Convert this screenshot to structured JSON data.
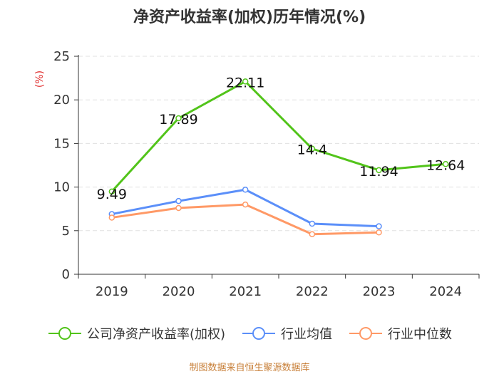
{
  "chart_data": {
    "type": "line",
    "title": "净资产收益率(加权)历年情况(%)",
    "ylabel": "(%)",
    "xlabel": "",
    "categories": [
      "2019",
      "2020",
      "2021",
      "2022",
      "2023",
      "2024"
    ],
    "ylim": [
      0,
      25
    ],
    "yticks": [
      0,
      5,
      10,
      15,
      20,
      25
    ],
    "grid": true,
    "legend_position": "bottom",
    "series": [
      {
        "name": "公司净资产收益率(加权)",
        "color": "#52c41a",
        "values": [
          9.49,
          17.89,
          22.11,
          14.4,
          11.94,
          12.64
        ],
        "labels": [
          "9.49",
          "17.89",
          "22.11",
          "14.4",
          "11.94",
          "12.64"
        ]
      },
      {
        "name": "行业均值",
        "color": "#5b8ff9",
        "values": [
          6.9,
          8.4,
          9.7,
          5.8,
          5.5,
          null
        ]
      },
      {
        "name": "行业中位数",
        "color": "#ff9966",
        "values": [
          6.5,
          7.6,
          8.0,
          4.6,
          4.8,
          null
        ]
      }
    ]
  },
  "source_note": "制图数据来自恒生聚源数据库",
  "axis_color": "#333333",
  "grid_color": "#e0e0e0",
  "ylabel_color": "#e03030"
}
